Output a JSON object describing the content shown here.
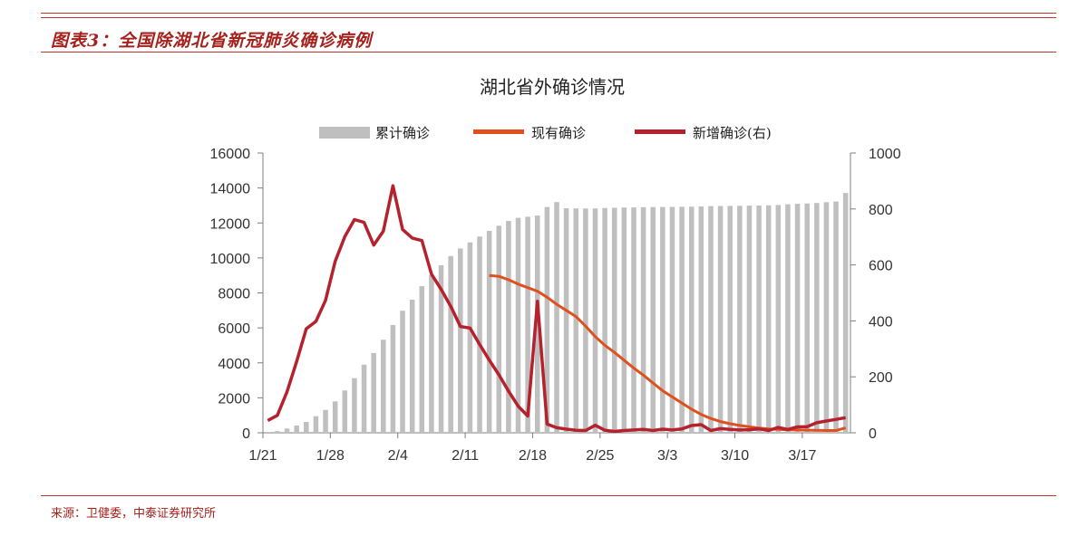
{
  "header": {
    "figure_title": "图表3：全国除湖北省新冠肺炎确诊病例",
    "source": "来源：卫健委，中泰证券研究所"
  },
  "colors": {
    "bars": "#bfbfbf",
    "current": "#e0501e",
    "new": "#b5222e",
    "accent": "#c0322b"
  },
  "chart_data": {
    "type": "bar+line",
    "title": "湖北省外确诊情况",
    "legend": {
      "placement": "top-center"
    },
    "x_tick_labels": [
      "1/21",
      "1/28",
      "2/4",
      "2/11",
      "2/18",
      "2/25",
      "3/3",
      "3/10",
      "3/17"
    ],
    "x_tick_index": [
      0,
      7,
      14,
      21,
      28,
      35,
      42,
      49,
      56
    ],
    "y_left": {
      "range": [
        0,
        16000
      ],
      "ticks": [
        0,
        2000,
        4000,
        6000,
        8000,
        10000,
        12000,
        14000,
        16000
      ]
    },
    "y_right": {
      "range": [
        0,
        1000
      ],
      "ticks": [
        0,
        200,
        400,
        600,
        800,
        1000
      ]
    },
    "series": [
      {
        "name": "累计确诊",
        "type": "bar",
        "axis": "left",
        "values": [
          5,
          95,
          244,
          415,
          620,
          950,
          1307,
          1796,
          2418,
          3122,
          3894,
          4562,
          5321,
          6164,
          6979,
          7614,
          8386,
          9024,
          9578,
          10105,
          10541,
          10887,
          11225,
          11544,
          11842,
          12117,
          12293,
          12355,
          12423,
          12912,
          13193,
          12842,
          12832,
          12827,
          12830,
          12855,
          12870,
          12884,
          12887,
          12902,
          12907,
          12913,
          12919,
          12925,
          12932,
          12946,
          12962,
          12969,
          12975,
          12982,
          12990,
          12998,
          13009,
          13027,
          13067,
          13094,
          13112,
          13144,
          13187,
          13226,
          13711
        ]
      },
      {
        "name": "现有确诊",
        "type": "line",
        "axis": "left",
        "start_index": 23,
        "values": [
          9000,
          8950,
          8750,
          8500,
          8300,
          8100,
          7750,
          7350,
          7000,
          6650,
          6100,
          5500,
          5000,
          4600,
          4150,
          3700,
          3300,
          2850,
          2400,
          2050,
          1700,
          1350,
          1050,
          820,
          640,
          520,
          420,
          340,
          270,
          220,
          190,
          170,
          160,
          150,
          140,
          130,
          130,
          280
        ]
      },
      {
        "name": "新增确诊(右)",
        "type": "line",
        "axis": "right",
        "values": [
          44,
          62,
          147,
          255,
          372,
          398,
          473,
          613,
          701,
          762,
          752,
          671,
          721,
          883,
          727,
          696,
          687,
          567,
          513,
          452,
          380,
          374,
          316,
          260,
          207,
          149,
          95,
          60,
          470,
          31,
          18,
          13,
          9,
          8,
          27,
          9,
          5,
          8,
          10,
          12,
          8,
          13,
          10,
          14,
          26,
          29,
          8,
          15,
          12,
          10,
          11,
          14,
          8,
          19,
          12,
          21,
          22,
          36,
          42,
          48,
          54
        ]
      }
    ]
  }
}
